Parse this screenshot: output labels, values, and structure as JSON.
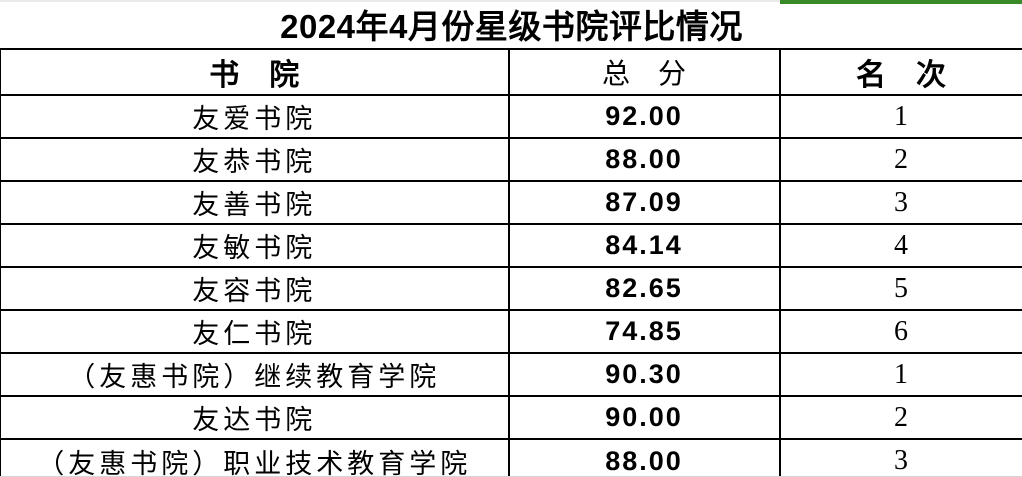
{
  "meta": {
    "accent_green": "#388A28",
    "border_color": "#000000",
    "gridline_color": "#D9D9D9",
    "background": "#FFFFFF"
  },
  "table": {
    "title": "2024年4月份星级书院评比情况",
    "columns": [
      {
        "key": "college",
        "label": "书　院"
      },
      {
        "key": "score",
        "label": "总　分"
      },
      {
        "key": "rank",
        "label": "名　次"
      }
    ],
    "rows": [
      {
        "college": "友爱书院",
        "score": "92.00",
        "rank": "1"
      },
      {
        "college": "友恭书院",
        "score": "88.00",
        "rank": "2"
      },
      {
        "college": "友善书院",
        "score": "87.09",
        "rank": "3"
      },
      {
        "college": "友敏书院",
        "score": "84.14",
        "rank": "4"
      },
      {
        "college": "友容书院",
        "score": "82.65",
        "rank": "5"
      },
      {
        "college": "友仁书院",
        "score": "74.85",
        "rank": "6"
      },
      {
        "college": "（友惠书院）继续教育学院",
        "score": "90.30",
        "rank": "1"
      },
      {
        "college": "友达书院",
        "score": "90.00",
        "rank": "2"
      },
      {
        "college": "（友惠书院）职业技术教育学院",
        "score": "88.00",
        "rank": "3"
      }
    ]
  }
}
